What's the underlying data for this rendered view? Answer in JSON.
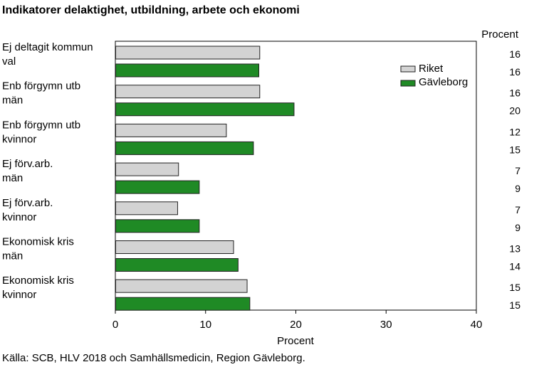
{
  "colors": {
    "riket": "#d3d3d3",
    "gavleborg": "#1f8a25",
    "bar_stroke": "#222222",
    "axis": "#000000"
  },
  "chart_data": {
    "type": "bar",
    "orientation": "horizontal",
    "title": "Indikatorer delaktighet, utbildning, arbete och ekonomi",
    "xlabel": "Procent",
    "value_column_label": "Procent",
    "xlim": [
      0,
      40
    ],
    "xticks": [
      "0",
      "10",
      "20",
      "30",
      "40"
    ],
    "grid": false,
    "legend_position": "top-right",
    "categories": [
      [
        "Ej deltagit kommun",
        "val"
      ],
      [
        "Enb förgymn utb",
        "män"
      ],
      [
        "Enb förgymn utb",
        "kvinnor"
      ],
      [
        "Ej förv.arb.",
        "män"
      ],
      [
        "Ej förv.arb.",
        "kvinnor"
      ],
      [
        "Ekonomisk kris",
        "män"
      ],
      [
        "Ekonomisk kris",
        "kvinnor"
      ]
    ],
    "series": [
      {
        "name": "Riket",
        "values": [
          16,
          16,
          12.3,
          7,
          6.9,
          13.1,
          14.6
        ],
        "labels": [
          "16",
          "16",
          "12",
          "7",
          "7",
          "13",
          "15"
        ]
      },
      {
        "name": "Gävleborg",
        "values": [
          15.9,
          19.8,
          15.3,
          9.3,
          9.3,
          13.6,
          14.9
        ],
        "labels": [
          "16",
          "20",
          "15",
          "9",
          "9",
          "14",
          "15"
        ]
      }
    ]
  },
  "source": "Källa: SCB, HLV 2018 och Samhällsmedicin, Region Gävleborg."
}
